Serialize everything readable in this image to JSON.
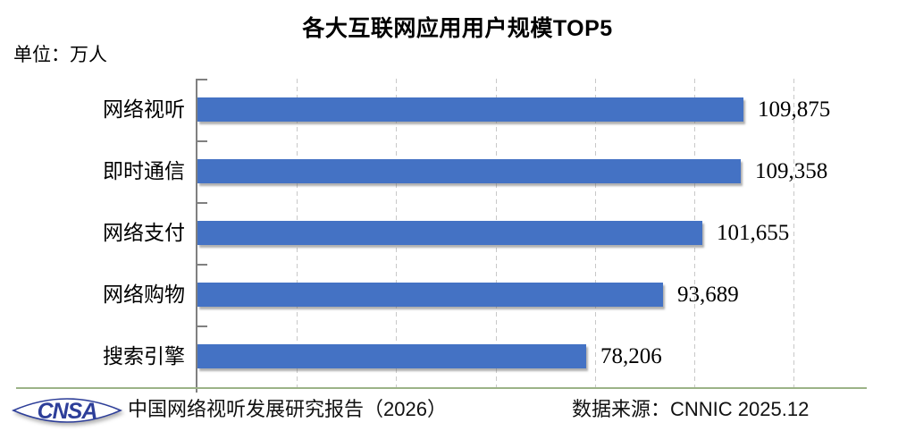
{
  "chart_data": {
    "type": "bar",
    "orientation": "horizontal",
    "title": "各大互联网应用用户规模TOP5",
    "unit_label": "单位：万人",
    "categories": [
      "网络视听",
      "即时通信",
      "网络支付",
      "网络购物",
      "搜索引擎"
    ],
    "values": [
      109875,
      109358,
      101655,
      93689,
      78206
    ],
    "value_labels": [
      "109,875",
      "109,358",
      "101,655",
      "93,689",
      "78,206"
    ],
    "xlim": [
      0,
      134700
    ],
    "gridline_step": 20000,
    "gridline_max": 120000,
    "grid": true,
    "legend": false,
    "bar_color": "#4472C4"
  },
  "footer": {
    "logo_text": "CNSA",
    "report_title": "中国网络视听发展研究报告（2026）",
    "data_source": "数据来源：CNNIC 2025.12"
  },
  "colors": {
    "bar": "#4472C4",
    "axis": "#808080",
    "gridline": "#C8C8C8",
    "baseline": "#9CB387",
    "logo_blue": "#2D3E99",
    "title_text": "#000000"
  }
}
